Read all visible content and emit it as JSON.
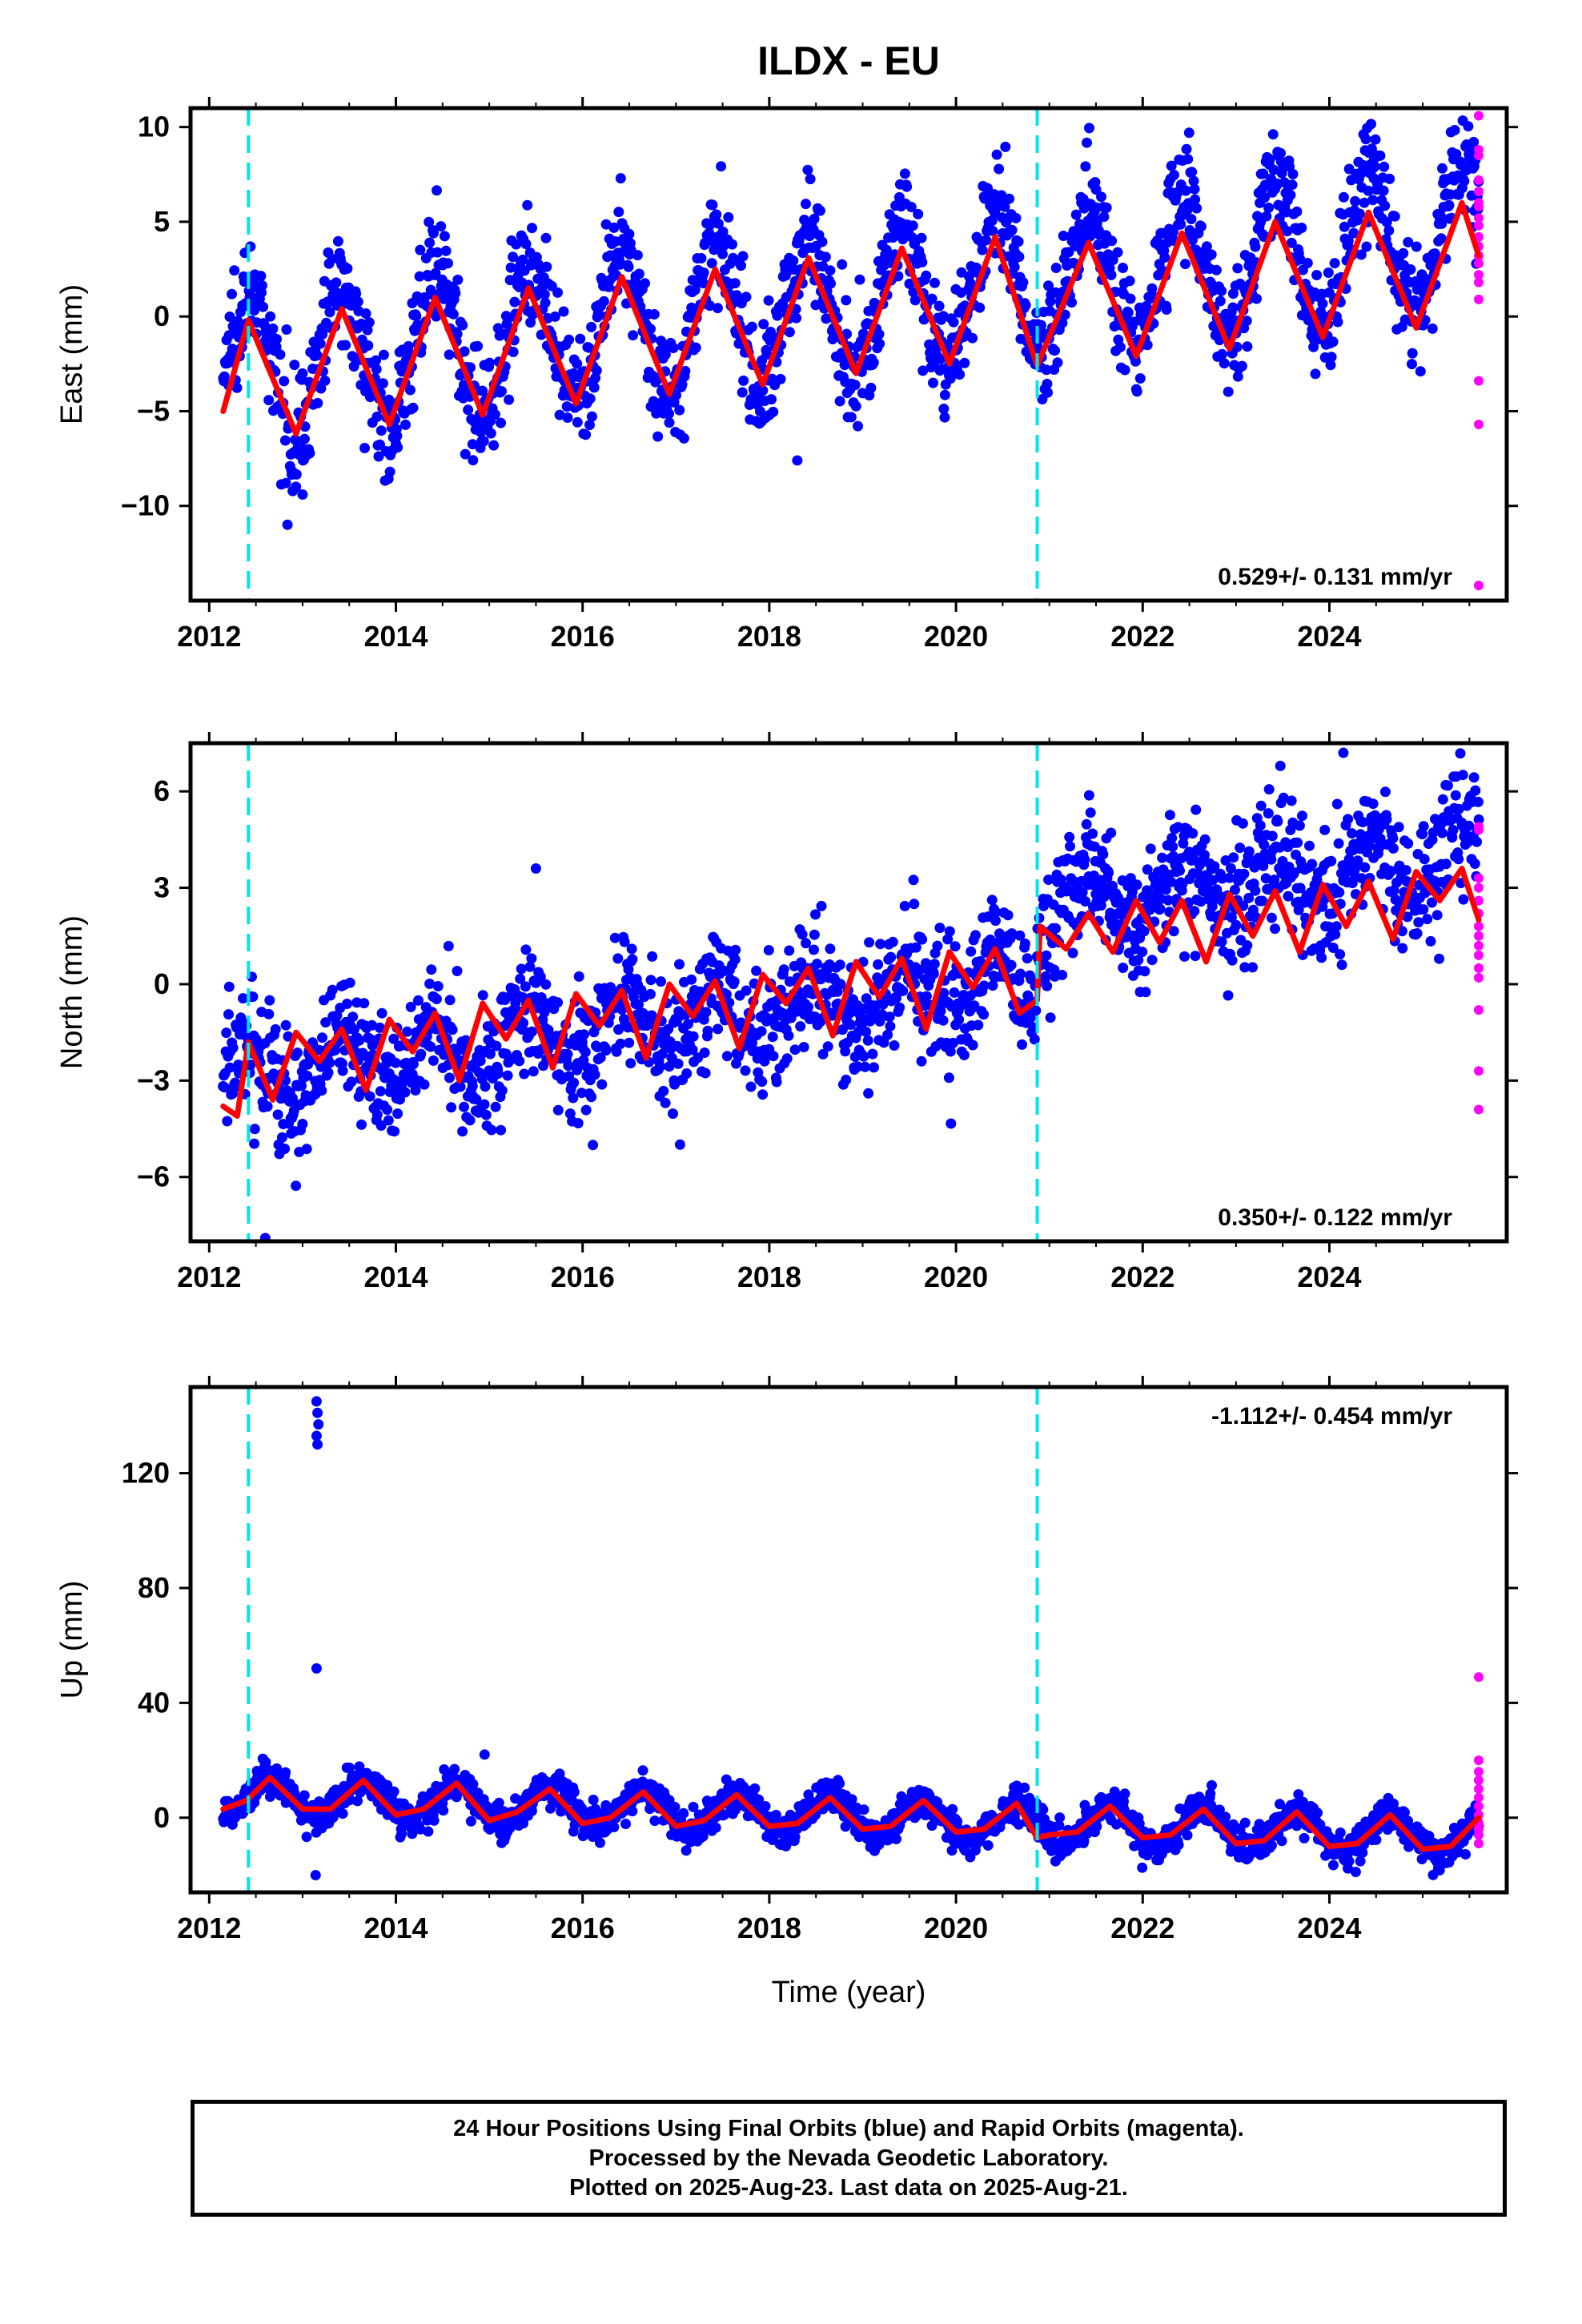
{
  "title": "ILDX - EU",
  "xlabel": "Time (year)",
  "caption": {
    "line1": "24 Hour Positions Using Final Orbits (blue) and Rapid Orbits (magenta).",
    "line2": "Processed by the Nevada Geodetic Laboratory.",
    "line3": "Plotted on 2025-Aug-23. Last data on 2025-Aug-21."
  },
  "colors": {
    "final_orbits": "#0000ff",
    "rapid_orbits": "#ff00ff",
    "model_fit": "#ff0000",
    "equipment_change": "#00e5ee"
  },
  "chart_data": [
    {
      "type": "scatter",
      "ylabel": "East (mm)",
      "xlim": [
        2011.8,
        2025.9
      ],
      "ylim": [
        -15,
        11
      ],
      "xticks": [
        2012,
        2014,
        2016,
        2018,
        2020,
        2022,
        2024
      ],
      "yticks": [
        10,
        5,
        0,
        -5,
        -10
      ],
      "grid": false,
      "rate_text": "0.529+/- 0.131 mm/yr",
      "rate_position": "bottom-right",
      "offset_lines_x": [
        2012.42,
        2020.87
      ],
      "series": [
        {
          "name": "Final Orbits",
          "color": "#0000ff",
          "model": {
            "start": 2012.15,
            "end": 2025.6,
            "offset": -2.8,
            "rate": 0.529,
            "amplitude": 3.8,
            "phase_year": 2012.42
          },
          "noise_sd": 1.5,
          "outliers": [
            [
              2013.0,
              -9.4
            ],
            [
              2018.3,
              -7.6
            ]
          ]
        },
        {
          "name": "Rapid Orbits",
          "color": "#ff00ff",
          "x": 2025.6,
          "y": [
            10.6,
            8.8,
            8.5,
            7.2,
            6.6,
            6.0,
            5.8,
            5.2,
            4.8,
            4.2,
            3.7,
            3.2,
            2.8,
            2.2,
            1.8,
            0.9,
            -3.4,
            -5.7,
            -14.2
          ]
        },
        {
          "name": "Model Fit",
          "color": "#ff0000",
          "x": [
            2012.15,
            2012.42,
            2012.93,
            2013.42,
            2013.93,
            2014.42,
            2014.93,
            2015.42,
            2015.93,
            2016.42,
            2016.93,
            2017.42,
            2017.93,
            2018.42,
            2018.93,
            2019.42,
            2019.93,
            2020.42,
            2020.87,
            2021.42,
            2021.93,
            2022.42,
            2022.93,
            2023.42,
            2023.93,
            2024.42,
            2024.93,
            2025.42,
            2025.6
          ],
          "y": [
            -5.0,
            -0.2,
            -6.2,
            0.4,
            -5.7,
            1.0,
            -5.2,
            1.5,
            -4.6,
            2.1,
            -4.1,
            2.5,
            -3.6,
            3.1,
            -3.0,
            3.6,
            -2.5,
            4.2,
            -2.6,
            3.9,
            -2.1,
            4.4,
            -1.7,
            5.0,
            -1.1,
            5.5,
            -0.6,
            6.0,
            3.2
          ]
        }
      ]
    },
    {
      "type": "scatter",
      "ylabel": "North (mm)",
      "xlim": [
        2011.8,
        2025.9
      ],
      "ylim": [
        -8,
        7.5
      ],
      "xticks": [
        2012,
        2014,
        2016,
        2018,
        2020,
        2022,
        2024
      ],
      "yticks": [
        6,
        3,
        0,
        -3,
        -6
      ],
      "grid": false,
      "rate_text": "0.350+/- 0.122 mm/yr",
      "rate_position": "bottom-right",
      "offset_lines_x": [
        2012.42,
        2020.87
      ],
      "series": [
        {
          "name": "Final Orbits",
          "color": "#0000ff",
          "model": {
            "start": 2012.15,
            "end": 2025.6,
            "offset": -2.9,
            "rate": 0.35,
            "amplitude": 0.9,
            "phase_year": 2012.42,
            "step_at": 2020.87,
            "step": 2.2
          },
          "noise_sd": 1.0,
          "outliers": [
            [
              2012.6,
              -7.9
            ],
            [
              2015.5,
              3.6
            ],
            [
              2024.15,
              7.2
            ]
          ]
        },
        {
          "name": "Rapid Orbits",
          "color": "#ff00ff",
          "x": 2025.6,
          "y": [
            4.9,
            4.8,
            3.3,
            3.0,
            2.6,
            2.2,
            1.8,
            1.5,
            1.2,
            0.9,
            0.5,
            0.2,
            -0.8,
            -2.7,
            -3.9
          ]
        },
        {
          "name": "Model Fit",
          "color": "#ff0000",
          "x": [
            2012.15,
            2012.3,
            2012.42,
            2012.68,
            2012.93,
            2013.18,
            2013.42,
            2013.68,
            2013.93,
            2014.18,
            2014.42,
            2014.68,
            2014.93,
            2015.18,
            2015.42,
            2015.68,
            2015.93,
            2016.18,
            2016.42,
            2016.68,
            2016.93,
            2017.18,
            2017.42,
            2017.68,
            2017.93,
            2018.18,
            2018.42,
            2018.68,
            2018.93,
            2019.18,
            2019.42,
            2019.68,
            2019.93,
            2020.18,
            2020.42,
            2020.68,
            2020.87,
            2020.9,
            2021.18,
            2021.42,
            2021.68,
            2021.93,
            2022.18,
            2022.42,
            2022.68,
            2022.93,
            2023.18,
            2023.42,
            2023.68,
            2023.93,
            2024.18,
            2024.42,
            2024.68,
            2024.93,
            2025.18,
            2025.42,
            2025.6
          ],
          "y": [
            -3.8,
            -4.1,
            -1.8,
            -3.6,
            -1.5,
            -2.4,
            -1.4,
            -3.3,
            -1.1,
            -2.1,
            -0.9,
            -3.0,
            -0.6,
            -1.7,
            -0.5,
            -2.6,
            -0.3,
            -1.3,
            -0.2,
            -2.3,
            0.0,
            -1.0,
            0.1,
            -2.0,
            0.3,
            -0.6,
            0.5,
            -1.6,
            0.7,
            -0.4,
            0.8,
            -1.4,
            1.0,
            -0.1,
            1.1,
            -0.9,
            -0.5,
            1.8,
            1.1,
            2.2,
            1.0,
            2.6,
            1.3,
            2.6,
            0.7,
            2.8,
            1.5,
            2.9,
            1.0,
            3.1,
            1.8,
            3.2,
            1.4,
            3.5,
            2.6,
            3.6,
            2.0
          ]
        }
      ]
    },
    {
      "type": "scatter",
      "ylabel": "Up (mm)",
      "xlim": [
        2011.8,
        2025.9
      ],
      "ylim": [
        -26,
        150
      ],
      "xticks": [
        2012,
        2014,
        2016,
        2018,
        2020,
        2022,
        2024
      ],
      "yticks": [
        120,
        80,
        40,
        0
      ],
      "grid": false,
      "rate_text": "-1.112+/- 0.454 mm/yr",
      "rate_position": "top-right",
      "offset_lines_x": [
        2012.42,
        2020.87
      ],
      "series": [
        {
          "name": "Final Orbits",
          "color": "#0000ff",
          "model": {
            "start": 2012.15,
            "end": 2025.6,
            "offset": 8.0,
            "rate": -1.112,
            "amplitude": 6.5,
            "phase_year": 2012.65
          },
          "noise_sd": 3.0,
          "outliers": [
            [
              2013.15,
              145
            ],
            [
              2013.16,
              141
            ],
            [
              2013.17,
              137
            ],
            [
              2013.15,
              133
            ],
            [
              2013.16,
              130
            ],
            [
              2013.15,
              52
            ],
            [
              2013.14,
              -20
            ],
            [
              2014.95,
              22
            ]
          ]
        },
        {
          "name": "Rapid Orbits",
          "color": "#ff00ff",
          "x": 2025.6,
          "y": [
            49,
            20,
            16,
            13,
            10,
            7,
            4,
            1,
            -2,
            -4,
            -6,
            -9
          ]
        },
        {
          "name": "Model Fit",
          "color": "#ff0000",
          "x": [
            2012.15,
            2012.4,
            2012.65,
            2013.0,
            2013.3,
            2013.65,
            2014.0,
            2014.3,
            2014.65,
            2015.0,
            2015.3,
            2015.65,
            2016.0,
            2016.3,
            2016.65,
            2017.0,
            2017.3,
            2017.65,
            2018.0,
            2018.3,
            2018.65,
            2019.0,
            2019.3,
            2019.65,
            2020.0,
            2020.3,
            2020.65,
            2020.87,
            2021.0,
            2021.3,
            2021.65,
            2022.0,
            2022.3,
            2022.65,
            2023.0,
            2023.3,
            2023.65,
            2024.0,
            2024.3,
            2024.65,
            2025.0,
            2025.3,
            2025.6
          ],
          "y": [
            3,
            6,
            14,
            3,
            3,
            13,
            1,
            3,
            12,
            -1,
            2,
            10,
            -2,
            0,
            9,
            -3,
            -1,
            8,
            -3,
            -2,
            7,
            -4,
            -3,
            6,
            -5,
            -4,
            5,
            -7,
            -6,
            -5,
            4,
            -7,
            -6,
            3,
            -9,
            -8,
            2,
            -10,
            -9,
            1,
            -11,
            -10,
            0
          ]
        }
      ]
    }
  ]
}
